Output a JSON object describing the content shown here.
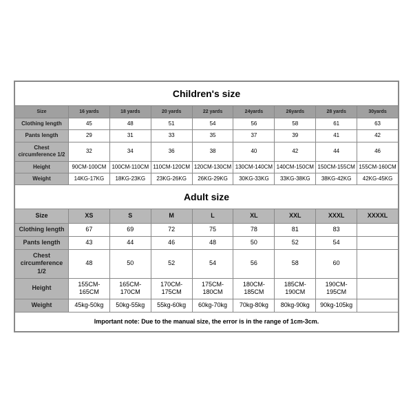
{
  "children": {
    "title": "Children's size",
    "size_label": "Size",
    "row_labels": [
      "Clothing length",
      "Pants length",
      "Chest circumference 1/2",
      "Height",
      "Weight"
    ],
    "columns": [
      "16 yards",
      "18 yards",
      "20 yards",
      "22 yards",
      "24yards",
      "26yards",
      "28 yards",
      "30yards"
    ],
    "rows": [
      [
        "45",
        "48",
        "51",
        "54",
        "56",
        "58",
        "61",
        "63"
      ],
      [
        "29",
        "31",
        "33",
        "35",
        "37",
        "39",
        "41",
        "42"
      ],
      [
        "32",
        "34",
        "36",
        "38",
        "40",
        "42",
        "44",
        "46"
      ],
      [
        "90CM-100CM",
        "100CM-110CM",
        "110CM-120CM",
        "120CM-130CM",
        "130CM-140CM",
        "140CM-150CM",
        "150CM-155CM",
        "155CM-160CM"
      ],
      [
        "14KG-17KG",
        "18KG-23KG",
        "23KG-26KG",
        "26KG-29KG",
        "30KG-33KG",
        "33KG-38KG",
        "38KG-42KG",
        "42KG-45KG"
      ]
    ]
  },
  "adult": {
    "title": "Adult size",
    "size_label": "Size",
    "row_labels": [
      "Clothing length",
      "Pants length",
      "Chest circumference 1/2",
      "Height",
      "Weight"
    ],
    "columns": [
      "XS",
      "S",
      "M",
      "L",
      "XL",
      "XXL",
      "XXXL",
      "XXXXL"
    ],
    "rows": [
      [
        "67",
        "69",
        "72",
        "75",
        "78",
        "81",
        "83",
        ""
      ],
      [
        "43",
        "44",
        "46",
        "48",
        "50",
        "52",
        "54",
        ""
      ],
      [
        "48",
        "50",
        "52",
        "54",
        "56",
        "58",
        "60",
        ""
      ],
      [
        "155CM-165CM",
        "165CM-170CM",
        "170CM-175CM",
        "175CM-180CM",
        "180CM-185CM",
        "185CM-190CM",
        "190CM-195CM",
        ""
      ],
      [
        "45kg-50kg",
        "50kg-55kg",
        "55kg-60kg",
        "60kg-70kg",
        "70kg-80kg",
        "80kg-90kg",
        "90kg-105kg",
        ""
      ]
    ]
  },
  "note": "Important note: Due to the manual size, the error is in the range of 1cm-3cm.",
  "style": {
    "border_color": "#888888",
    "header_bg": "#a0a0a0",
    "adult_header_bg": "#b8b8b8",
    "label_bg": "#b5b5b5",
    "text_color": "#000000"
  }
}
